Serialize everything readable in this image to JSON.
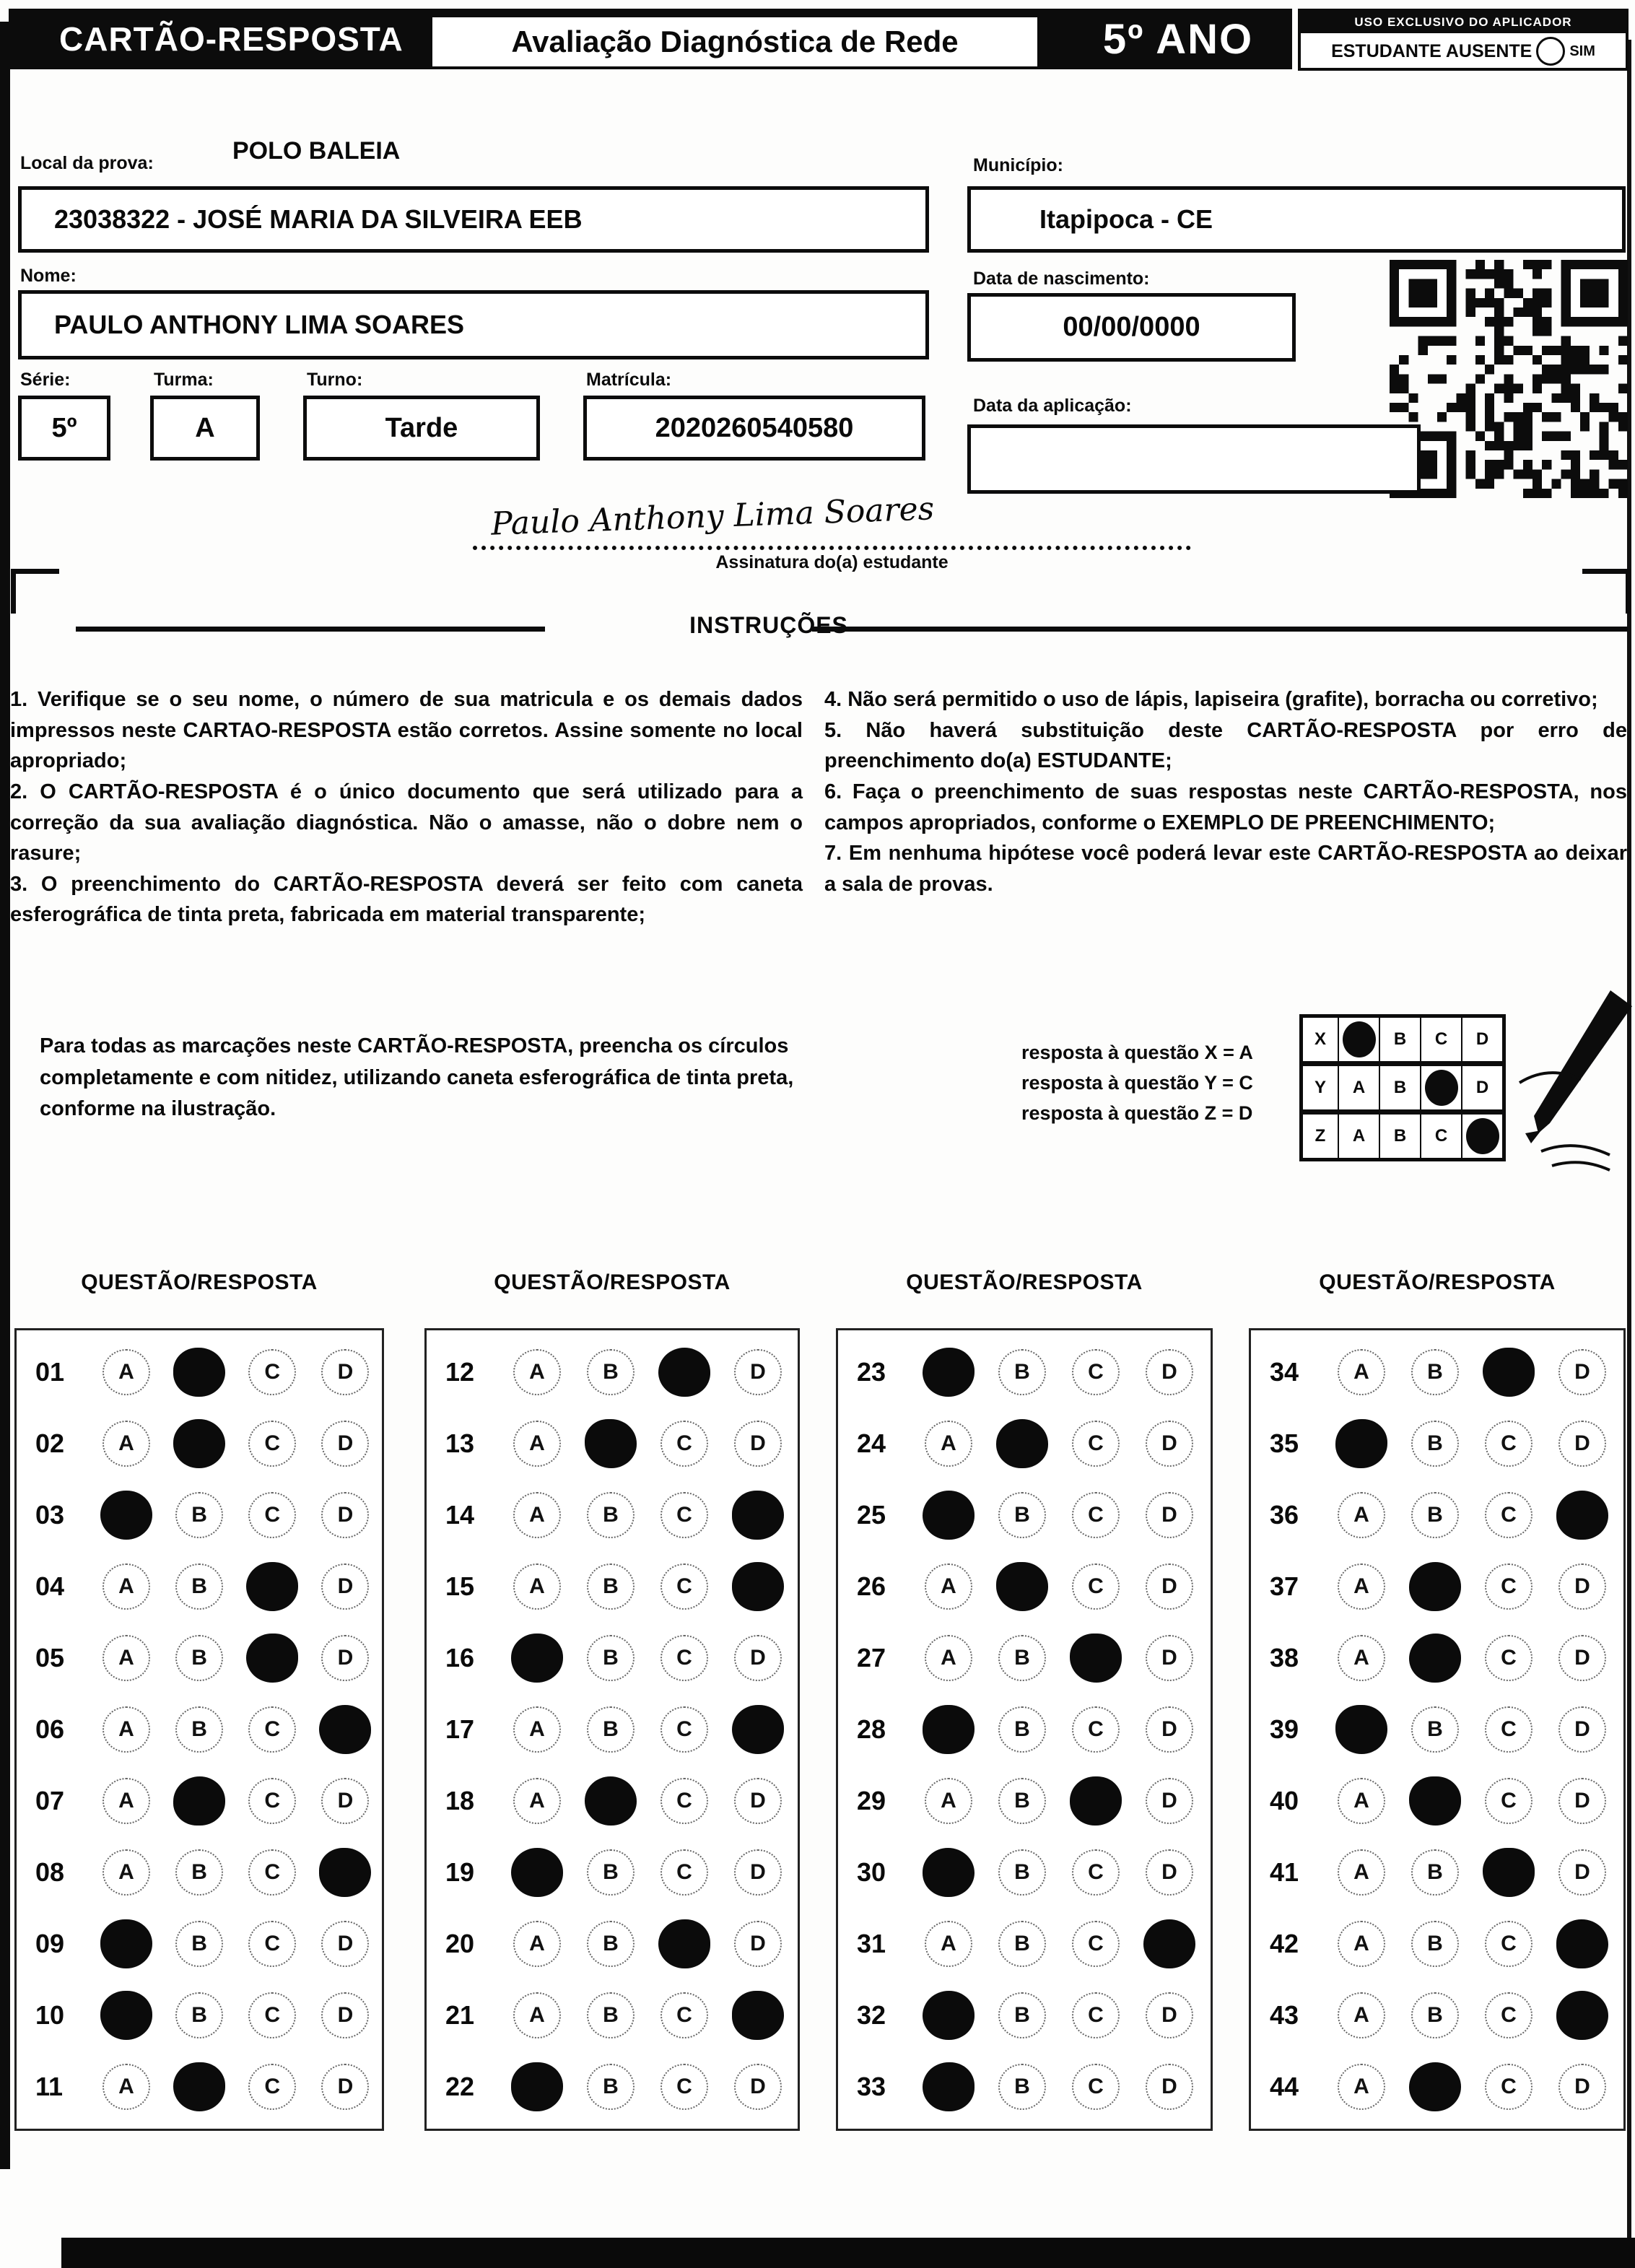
{
  "header": {
    "title": "CARTÃO-RESPOSTA",
    "subtitle": "Avaliação Diagnóstica de Rede",
    "grade": "5º ANO",
    "aplicador_label": "USO EXCLUSIVO DO APLICADOR",
    "absent_label": "ESTUDANTE AUSENTE",
    "absent_option": "SIM"
  },
  "form": {
    "local_label": "Local da prova:",
    "local_value": "POLO BALEIA",
    "school_value": "23038322 - JOSÉ MARIA DA SILVEIRA EEB",
    "municipio_label": "Município:",
    "municipio_value": "Itapipoca - CE",
    "nome_label": "Nome:",
    "nome_value": "PAULO ANTHONY LIMA SOARES",
    "nascimento_label": "Data de nascimento:",
    "nascimento_value": "00/00/0000",
    "serie_label": "Série:",
    "serie_value": "5º",
    "turma_label": "Turma:",
    "turma_value": "A",
    "turno_label": "Turno:",
    "turno_value": "Tarde",
    "matricula_label": "Matrícula:",
    "matricula_value": "2020260540580",
    "aplicacao_label": "Data da aplicação:",
    "aplicacao_value": ""
  },
  "signature": {
    "handwritten": "Paulo Anthony Lima Soares",
    "caption": "Assinatura do(a) estudante"
  },
  "instructions": {
    "heading": "INSTRUÇÕES",
    "left_items": [
      "1. Verifique se o seu nome, o número de sua matricula e os demais dados impressos neste CARTAO-RESPOSTA estão corretos. Assine somente no local apropriado;",
      "2. O CARTÃO-RESPOSTA é o único documento que será utilizado para a correção da sua avaliação diagnóstica. Não o amasse, não o dobre nem o rasure;",
      "3. O preenchimento do CARTÃO-RESPOSTA deverá ser feito com caneta esferográfica de tinta preta, fabricada em material transparente;"
    ],
    "right_items": [
      "4. Não será permitido o uso de lápis, lapiseira (grafite), borracha ou corretivo;",
      "5. Não haverá substituição deste CARTÃO-RESPOSTA por erro de preenchimento do(a) ESTUDANTE;",
      "6. Faça o preenchimento de suas respostas neste CARTÃO-RESPOSTA, nos campos apropriados, conforme o EXEMPLO DE PREENCHIMENTO;",
      "7. Em nenhuma hipótese você poderá levar este CARTÃO-RESPOSTA ao deixar a sala de provas."
    ]
  },
  "example": {
    "note": "Para todas as marcações neste CARTÃO-RESPOSTA, preencha os círculos completamente e com nitidez, utilizando caneta esferográfica de tinta preta, conforme na ilustração.",
    "captions": [
      "resposta à questão X = A",
      "resposta à questão Y = C",
      "resposta à questão Z = D"
    ],
    "rows": [
      {
        "label": "X",
        "filled": "A"
      },
      {
        "label": "Y",
        "filled": "C"
      },
      {
        "label": "Z",
        "filled": "D"
      }
    ]
  },
  "answers": {
    "column_header": "QUESTÃO/RESPOSTA",
    "options": [
      "A",
      "B",
      "C",
      "D"
    ],
    "columns": [
      [
        {
          "n": "01",
          "answer": "B"
        },
        {
          "n": "02",
          "answer": "B"
        },
        {
          "n": "03",
          "answer": "A"
        },
        {
          "n": "04",
          "answer": "C"
        },
        {
          "n": "05",
          "answer": "C"
        },
        {
          "n": "06",
          "answer": "D"
        },
        {
          "n": "07",
          "answer": "B"
        },
        {
          "n": "08",
          "answer": "D"
        },
        {
          "n": "09",
          "answer": "A"
        },
        {
          "n": "10",
          "answer": "A"
        },
        {
          "n": "11",
          "answer": "B"
        }
      ],
      [
        {
          "n": "12",
          "answer": "C"
        },
        {
          "n": "13",
          "answer": "B"
        },
        {
          "n": "14",
          "answer": "D"
        },
        {
          "n": "15",
          "answer": "D"
        },
        {
          "n": "16",
          "answer": "A"
        },
        {
          "n": "17",
          "answer": "D"
        },
        {
          "n": "18",
          "answer": "B"
        },
        {
          "n": "19",
          "answer": "A"
        },
        {
          "n": "20",
          "answer": "C"
        },
        {
          "n": "21",
          "answer": "D"
        },
        {
          "n": "22",
          "answer": "A"
        }
      ],
      [
        {
          "n": "23",
          "answer": "A"
        },
        {
          "n": "24",
          "answer": "B"
        },
        {
          "n": "25",
          "answer": "A"
        },
        {
          "n": "26",
          "answer": "B"
        },
        {
          "n": "27",
          "answer": "C"
        },
        {
          "n": "28",
          "answer": "A"
        },
        {
          "n": "29",
          "answer": "C"
        },
        {
          "n": "30",
          "answer": "A"
        },
        {
          "n": "31",
          "answer": "D"
        },
        {
          "n": "32",
          "answer": "A"
        },
        {
          "n": "33",
          "answer": "A"
        }
      ],
      [
        {
          "n": "34",
          "answer": "C"
        },
        {
          "n": "35",
          "answer": "A"
        },
        {
          "n": "36",
          "answer": "D"
        },
        {
          "n": "37",
          "answer": "B"
        },
        {
          "n": "38",
          "answer": "B"
        },
        {
          "n": "39",
          "answer": "A"
        },
        {
          "n": "40",
          "answer": "B"
        },
        {
          "n": "41",
          "answer": "C"
        },
        {
          "n": "42",
          "answer": "D"
        },
        {
          "n": "43",
          "answer": "D"
        },
        {
          "n": "44",
          "answer": "B"
        }
      ]
    ]
  }
}
